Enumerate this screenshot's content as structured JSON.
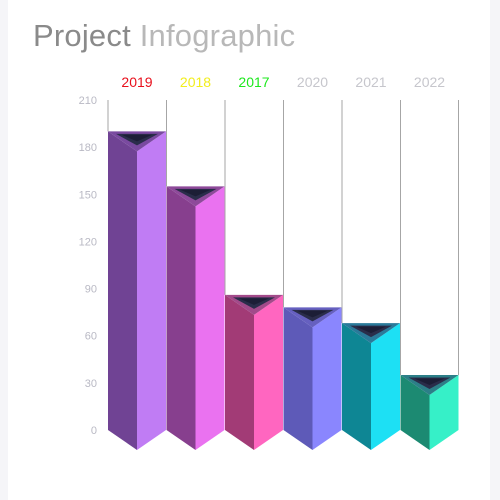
{
  "title": {
    "part1": "Project",
    "part2": "Infographic"
  },
  "chart_data": {
    "type": "bar",
    "title": "Project Infographic",
    "categories": [
      "2019",
      "2018",
      "2017",
      "2020",
      "2021",
      "2022"
    ],
    "values": [
      190,
      155,
      86,
      78,
      68,
      35
    ],
    "ylim": [
      0,
      210
    ],
    "yticks": [
      0,
      30,
      60,
      90,
      120,
      150,
      180,
      210
    ],
    "xlabel": "",
    "ylabel": "",
    "legend": "none",
    "grid": false,
    "label_colors": [
      "#e8101c",
      "#f2ee1e",
      "#1ee81e",
      "#c6c6cc",
      "#c6c6cc",
      "#c6c6cc"
    ],
    "bar_colors": [
      {
        "left": "#704394",
        "right": "#c07cf4",
        "top": "#7a4aa0"
      },
      {
        "left": "#873f8e",
        "right": "#ea72f0",
        "top": "#8e4a9a"
      },
      {
        "left": "#a23b76",
        "right": "#ff66c0",
        "top": "#a24a8a"
      },
      {
        "left": "#5e5ab8",
        "right": "#8a86fe",
        "top": "#6660c0"
      },
      {
        "left": "#0e8694",
        "right": "#1de0f4",
        "top": "#2a7a9a"
      },
      {
        "left": "#1c8a72",
        "right": "#36f0c8",
        "top": "#2c7f88"
      }
    ]
  }
}
